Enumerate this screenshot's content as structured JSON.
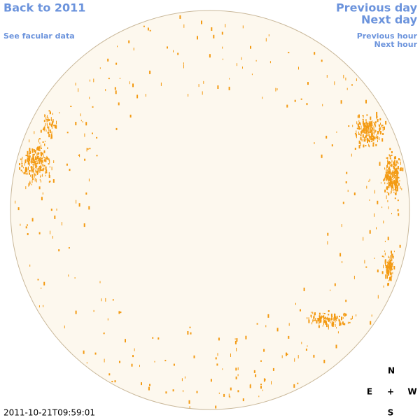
{
  "nav": {
    "back": "Back to 2011",
    "facular_data": "See facular data",
    "previous_day": "Previous day",
    "next_day": "Next day",
    "previous_hour": "Previous hour",
    "next_hour": "Next hour"
  },
  "timestamp": "2011-10-21T09:59:01",
  "compass": {
    "north": "N",
    "east": "E",
    "center": "+",
    "west": "W",
    "south": "S"
  }
}
